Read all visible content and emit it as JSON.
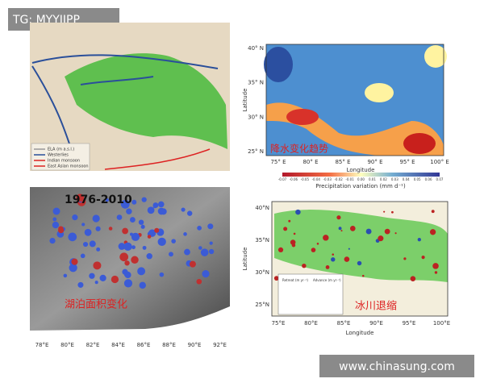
{
  "badge": "TG: MYYJJPP",
  "watermark": "www.chinasung.com",
  "panels": [
    {
      "legend": [
        "ELA (m a.s.l.)",
        "Westerlies",
        "Indian monsoon",
        "East Asian monsoon"
      ]
    },
    {
      "y_label": "Latitude",
      "x_label": "Longitude",
      "y_ticks": [
        "40° N",
        "35° N",
        "30° N",
        "25° N"
      ],
      "x_ticks": [
        "75° E",
        "80° E",
        "85° E",
        "90° E",
        "95° E",
        "100° E"
      ],
      "colorbar_ticks": [
        "-0.07",
        "-0.06",
        "-0.05",
        "-0.04",
        "-0.03",
        "-0.02",
        "-0.01",
        "0.00",
        "0.01",
        "0.02",
        "0.03",
        "0.04",
        "0.05",
        "0.06",
        "0.07"
      ],
      "colorbar_label": "Precipitation variation (mm d⁻¹)",
      "annotation": "降水变化趋势"
    },
    {
      "title": "1976-2010",
      "annotation": "湖泊面积变化",
      "x_ticks": [
        "78°E",
        "80°E",
        "82°E",
        "84°E",
        "86°E",
        "88°E",
        "90°E",
        "92°E"
      ]
    },
    {
      "y_label": "Latitude",
      "x_label": "Longitude",
      "y_ticks": [
        "40°N",
        "35°N",
        "30°N",
        "25°N"
      ],
      "x_ticks": [
        "75°E",
        "80°E",
        "85°E",
        "90°E",
        "95°E",
        "100°E"
      ],
      "legend": [
        "Retreat (m yr⁻¹)",
        "Advance (m yr⁻¹)"
      ],
      "annotation": "冰川退缩"
    }
  ]
}
